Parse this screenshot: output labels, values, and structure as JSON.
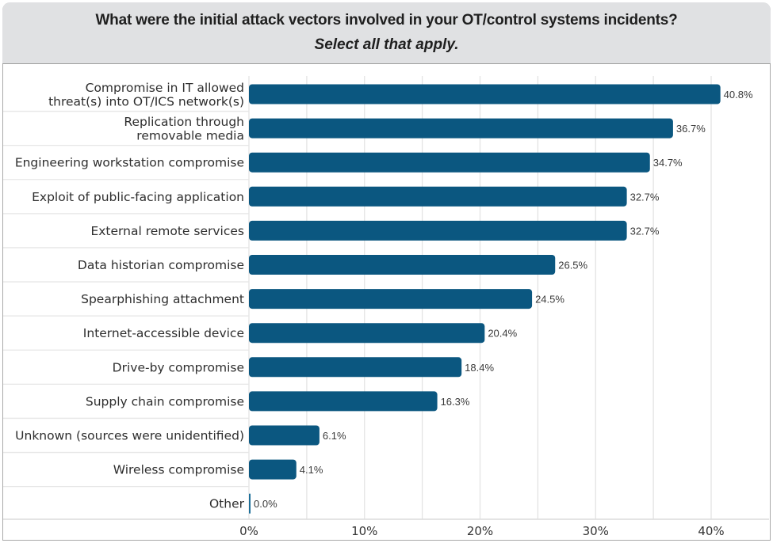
{
  "chart_data": {
    "type": "bar",
    "orientation": "horizontal",
    "title": "What were the initial attack vectors involved in your OT/control systems incidents?",
    "subtitle": "Select all that apply.",
    "categories": [
      [
        "Compromise in IT allowed",
        "threat(s) into OT/ICS network(s)"
      ],
      [
        "Replication through",
        "removable media"
      ],
      [
        "Engineering workstation compromise"
      ],
      [
        "Exploit of public-facing application"
      ],
      [
        "External remote services"
      ],
      [
        "Data historian compromise"
      ],
      [
        "Spearphishing attachment"
      ],
      [
        "Internet-accessible device"
      ],
      [
        "Drive-by compromise"
      ],
      [
        "Supply chain compromise"
      ],
      [
        "Unknown (sources were unidentified)"
      ],
      [
        "Wireless compromise"
      ],
      [
        "Other"
      ]
    ],
    "values": [
      40.8,
      36.7,
      34.7,
      32.7,
      32.7,
      26.5,
      24.5,
      20.4,
      18.4,
      16.3,
      6.1,
      4.1,
      0.0
    ],
    "value_labels": [
      "40.8%",
      "36.7%",
      "34.7%",
      "32.7%",
      "32.7%",
      "26.5%",
      "24.5%",
      "20.4%",
      "18.4%",
      "16.3%",
      "6.1%",
      "4.1%",
      "0.0%"
    ],
    "xlabel": "",
    "ylabel": "",
    "xlim": [
      0,
      45
    ],
    "x_ticks": [
      0,
      10,
      20,
      30,
      40
    ],
    "x_tick_labels": [
      "0%",
      "10%",
      "20%",
      "30%",
      "40%"
    ],
    "grid_step": 5,
    "grid": true,
    "legend": "none",
    "colors": {
      "bar": "#0b5780",
      "header_bg": "#e0e1e3",
      "grid": "#e3e3e3"
    }
  }
}
